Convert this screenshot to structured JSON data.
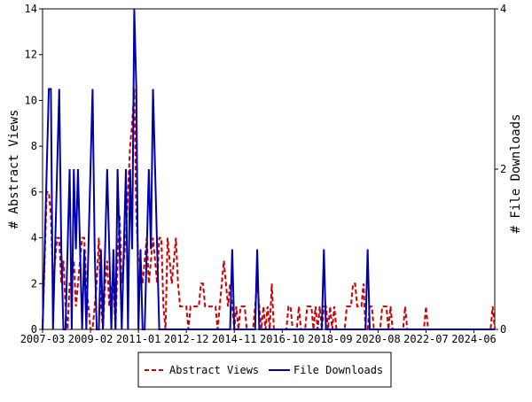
{
  "chart_data": {
    "type": "line",
    "y_label": "# Abstract Views",
    "y2_label": "# File Downloads",
    "categories": [
      "2007-03",
      null,
      null,
      null,
      null,
      null,
      null,
      null,
      null,
      null,
      null,
      null,
      null,
      null,
      null,
      null,
      null,
      null,
      null,
      null,
      null,
      null,
      null,
      "2009-02",
      null,
      null,
      null,
      null,
      null,
      null,
      null,
      null,
      null,
      null,
      null,
      null,
      null,
      null,
      null,
      null,
      null,
      null,
      null,
      null,
      null,
      null,
      "2011-01",
      null,
      null,
      null,
      null,
      null,
      null,
      null,
      null,
      null,
      null,
      null,
      null,
      null,
      null,
      null,
      null,
      null,
      null,
      null,
      null,
      null,
      null,
      "2012-12",
      null,
      null,
      null,
      null,
      null,
      null,
      null,
      null,
      null,
      null,
      null,
      null,
      null,
      null,
      null,
      null,
      null,
      null,
      null,
      null,
      null,
      null,
      "2014-11",
      null,
      null,
      null,
      null,
      null,
      null,
      null,
      null,
      null,
      null,
      null,
      null,
      null,
      null,
      null,
      null,
      null,
      null,
      null,
      null,
      null,
      null,
      "2016-10",
      null,
      null,
      null,
      null,
      null,
      null,
      null,
      null,
      null,
      null,
      null,
      null,
      null,
      null,
      null,
      null,
      null,
      null,
      null,
      null,
      null,
      null,
      "2018-09",
      null,
      null,
      null,
      null,
      null,
      null,
      null,
      null,
      null,
      null,
      null,
      null,
      null,
      null,
      null,
      null,
      null,
      null,
      null,
      null,
      null,
      null,
      "2020-08",
      null,
      null,
      null,
      null,
      null,
      null,
      null,
      null,
      null,
      null,
      null,
      null,
      null,
      null,
      null,
      null,
      null,
      null,
      null,
      null,
      null,
      null,
      "2022-07",
      null,
      null,
      null,
      null,
      null,
      null,
      null,
      null,
      null,
      null,
      null,
      null,
      null,
      null,
      null,
      null,
      null,
      null,
      null,
      null,
      null,
      null,
      "2024-06",
      null,
      null,
      null,
      null,
      null,
      null,
      null,
      null,
      null,
      null
    ],
    "series": [
      {
        "name": "Abstract Views",
        "color": "#cc0000",
        "dashed": true,
        "values": [
          0,
          3,
          6,
          6,
          5,
          2,
          3,
          4,
          4,
          2,
          3,
          1,
          0,
          2,
          2,
          3,
          1,
          2,
          3,
          4,
          4,
          2,
          1,
          0,
          0,
          1,
          2,
          4,
          1,
          0,
          2,
          3,
          1,
          2,
          2,
          0,
          3,
          5,
          2,
          3,
          4,
          6,
          8,
          9,
          10.5,
          5,
          3,
          3,
          2,
          3,
          4,
          2,
          3,
          4,
          3,
          2,
          4,
          4,
          1,
          0,
          4,
          3,
          2,
          3,
          4,
          2,
          1,
          1,
          1,
          1,
          0,
          1,
          1,
          1,
          1,
          1,
          2,
          2,
          1,
          1,
          1,
          1,
          1,
          1,
          0,
          1,
          2,
          3,
          2,
          1,
          2,
          1,
          0,
          1,
          0,
          1,
          1,
          1,
          0,
          0,
          0,
          0,
          1,
          2,
          1,
          0,
          1,
          0,
          1,
          0,
          2,
          0,
          0,
          0,
          0,
          0,
          0,
          0,
          1,
          1,
          0,
          0,
          0,
          1,
          0,
          0,
          0,
          1,
          1,
          1,
          0,
          1,
          0,
          1,
          0,
          1,
          1,
          0,
          1,
          0,
          1,
          0,
          0,
          0,
          0,
          0,
          1,
          1,
          1,
          2,
          2,
          1,
          1,
          1,
          2,
          0,
          0,
          1,
          1,
          0,
          0,
          0,
          0,
          1,
          1,
          1,
          0,
          1,
          0,
          0,
          0,
          0,
          0,
          0,
          1,
          0,
          0,
          0,
          0,
          0,
          0,
          0,
          0,
          0,
          1,
          0,
          0,
          0,
          0,
          0,
          0,
          0,
          0,
          0,
          0,
          0,
          0,
          0,
          0,
          0,
          0,
          0,
          0,
          0,
          0,
          0,
          0,
          0,
          0,
          0,
          0,
          0,
          0,
          0,
          0,
          0,
          1,
          0
        ]
      },
      {
        "name": "File Downloads",
        "color": "#0000aa",
        "axis": "y2",
        "values": [
          0,
          1,
          2,
          3,
          3,
          0,
          1,
          2,
          3,
          1,
          0,
          0,
          1,
          2,
          0,
          2,
          1,
          2,
          1,
          0,
          1,
          0,
          1,
          2,
          3,
          1,
          0,
          0,
          1,
          0,
          1,
          2,
          1,
          0,
          1,
          0,
          2,
          1,
          0,
          1,
          2,
          0,
          2,
          1,
          4,
          3,
          0,
          1,
          0,
          0,
          1,
          2,
          1,
          3,
          2,
          1,
          0,
          0,
          0,
          0,
          0,
          0,
          0,
          0,
          0,
          0,
          0,
          0,
          0,
          0,
          0,
          0,
          0,
          0,
          0,
          0,
          0,
          0,
          0,
          0,
          0,
          0,
          0,
          0,
          0,
          0,
          0,
          0,
          0,
          0,
          0,
          1,
          0,
          0,
          0,
          0,
          0,
          0,
          0,
          0,
          0,
          0,
          0,
          1,
          0,
          0,
          0,
          0,
          0,
          0,
          0,
          0,
          0,
          0,
          0,
          0,
          0,
          0,
          0,
          0,
          0,
          0,
          0,
          0,
          0,
          0,
          0,
          0,
          0,
          0,
          0,
          0,
          0,
          0,
          0,
          1,
          0,
          0,
          0,
          0,
          0,
          0,
          0,
          0,
          0,
          0,
          0,
          0,
          0,
          0,
          0,
          0,
          0,
          0,
          0,
          0,
          1,
          0,
          0,
          0,
          0,
          0,
          0,
          0,
          0,
          0,
          0,
          0,
          0,
          0,
          0,
          0,
          0,
          0,
          0,
          0,
          0,
          0,
          0,
          0,
          0,
          0,
          0,
          0,
          0,
          0,
          0,
          0,
          0,
          0,
          0,
          0,
          0,
          0,
          0,
          0,
          0,
          0,
          0,
          0,
          0,
          0,
          0,
          0,
          0,
          0,
          0,
          0,
          0,
          0,
          0,
          0,
          0,
          0,
          0,
          0,
          0,
          0
        ]
      }
    ],
    "ylim": [
      0,
      14
    ],
    "yticks": [
      0,
      2,
      4,
      6,
      8,
      10,
      12,
      14
    ],
    "y2lim": [
      0,
      4
    ],
    "y2ticks": [
      0,
      2,
      4
    ],
    "legend": "bottom"
  }
}
